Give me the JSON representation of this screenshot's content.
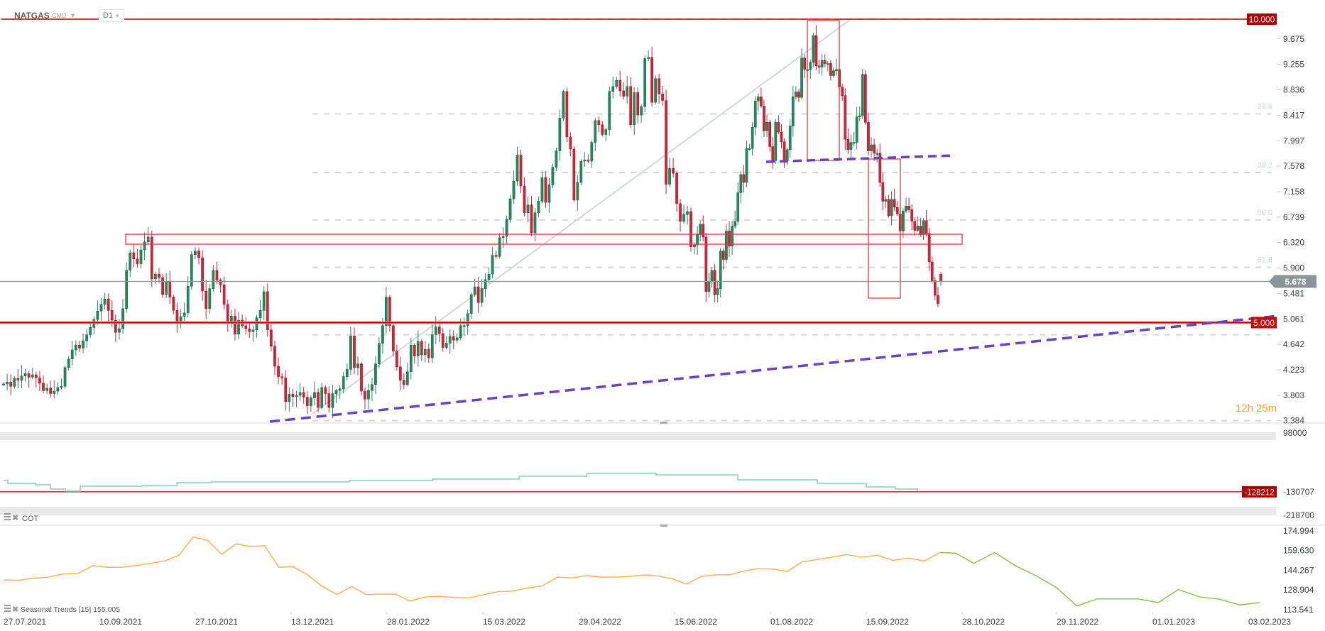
{
  "header": {
    "symbol": "NATGAS",
    "market": "CMD",
    "timeframe": "D1"
  },
  "icons": {
    "dropdown": "caret-down-icon",
    "panel_menu": "list-icon",
    "panel_close": "close-icon"
  },
  "colors": {
    "up": "#1f8b5b",
    "down": "#d91f35",
    "level_line": "#c40000",
    "current_price": "#8a9599",
    "trend": "#6a40c4",
    "fib": "#cfd8dc",
    "cot_line": "#7fd3b0",
    "seasonal_history": "#ffb150",
    "seasonal_projection": "#8bc34a",
    "countdown": "#f7a035"
  },
  "price_axis": {
    "labels": [
      "9.675",
      "9.255",
      "8.836",
      "8.417",
      "7.997",
      "7.578",
      "7.158",
      "6.739",
      "6.320",
      "5.900",
      "5.481",
      "5.061",
      "4.642",
      "4.223",
      "3.803",
      "3.384"
    ]
  },
  "badges": {
    "resistance": "10.000",
    "support": "5.000",
    "current_price": "5.678",
    "cot_level": "-128212"
  },
  "fib": {
    "high": 10.0,
    "low": 3.384,
    "levels": [
      0,
      23.6,
      38.2,
      50.0,
      61.8,
      78.6,
      100
    ],
    "visible_labels": [
      "23.6",
      "38.2",
      "50.0",
      "61.8"
    ]
  },
  "countdown": {
    "hours": "12h",
    "minutes": "25m"
  },
  "cot": {
    "label": "COT",
    "axis_labels": [
      "98000",
      "-130707",
      "-218700"
    ]
  },
  "seasonal": {
    "label": "Seasonal  Trends  [15]  155.005",
    "axis_labels": [
      "174.994",
      "159.630",
      "144.267",
      "128.904",
      "113.541"
    ]
  },
  "date_axis": {
    "labels": [
      "27.07.2021",
      "10.09.2021",
      "27.10.2021",
      "13.12.2021",
      "28.01.2022",
      "15.03.2022",
      "29.04.2022",
      "15.06.2022",
      "01.08.2022",
      "15.09.2022",
      "28.10.2022",
      "29.11.2022",
      "01.01.2023",
      "03.02.2023"
    ]
  },
  "chart_data": [
    {
      "type": "candlestick",
      "title": "NATGAS",
      "interval": "D1",
      "x_range": [
        "27.07.2021",
        "03.02.2023"
      ],
      "ylim": [
        3.384,
        10.0
      ],
      "levels": [
        10.0,
        5.0
      ],
      "last_price": 5.678,
      "closes": [
        3.99,
        4.02,
        3.95,
        4.08,
        4.05,
        4.12,
        4.16,
        4.1,
        4.14,
        4.09,
        4.0,
        3.88,
        3.92,
        3.83,
        3.87,
        3.93,
        3.95,
        4.26,
        4.4,
        4.55,
        4.63,
        4.58,
        4.7,
        4.8,
        4.92,
        5.05,
        5.19,
        5.3,
        5.39,
        5.2,
        5.04,
        4.84,
        4.9,
        5.23,
        5.86,
        6.15,
        6.05,
        5.97,
        6.2,
        6.33,
        6.41,
        5.72,
        5.8,
        5.74,
        5.46,
        5.68,
        5.42,
        5.2,
        4.99,
        5.1,
        5.16,
        5.6,
        6.12,
        6.18,
        6.07,
        5.52,
        5.23,
        5.56,
        5.86,
        5.7,
        5.62,
        5.3,
        4.99,
        5.11,
        4.81,
        5.04,
        4.95,
        4.9,
        4.85,
        4.88,
        5.08,
        5.2,
        5.51,
        4.88,
        4.61,
        4.28,
        4.11,
        4.09,
        3.7,
        3.82,
        3.78,
        3.8,
        3.85,
        3.77,
        3.63,
        3.76,
        3.85,
        3.6,
        3.93,
        3.83,
        3.6,
        3.83,
        3.88,
        3.91,
        4.11,
        4.23,
        4.78,
        4.26,
        4.32,
        3.87,
        3.74,
        3.88,
        3.98,
        4.32,
        4.66,
        4.95,
        5.42,
        4.95,
        4.53,
        4.27,
        4.05,
        3.98,
        4.19,
        4.63,
        4.45,
        4.69,
        4.47,
        4.56,
        4.42,
        4.8,
        4.93,
        4.82,
        4.59,
        4.66,
        4.77,
        4.71,
        4.75,
        4.95,
        4.95,
        5.15,
        5.46,
        5.59,
        5.33,
        5.56,
        5.71,
        5.8,
        6.11,
        6.09,
        6.4,
        6.42,
        6.7,
        7.04,
        7.33,
        7.76,
        7.25,
        6.81,
        6.94,
        6.48,
        6.81,
        7.0,
        7.39,
        6.98,
        7.27,
        7.56,
        7.83,
        8.37,
        8.81,
        8.06,
        7.86,
        7.02,
        7.31,
        7.66,
        7.68,
        7.66,
        7.97,
        8.33,
        8.26,
        8.1,
        8.18,
        8.81,
        8.89,
        8.99,
        8.82,
        8.73,
        8.89,
        8.26,
        8.79,
        8.42,
        8.56,
        9.35,
        9.37,
        8.63,
        9.02,
        8.77,
        8.66,
        7.28,
        7.54,
        7.46,
        6.96,
        6.67,
        6.78,
        6.83,
        6.25,
        6.28,
        6.45,
        6.62,
        6.41,
        5.51,
        5.68,
        5.86,
        5.46,
        5.56,
        6.18,
        6.04,
        6.51,
        6.26,
        6.59,
        6.67,
        7.14,
        7.44,
        7.31,
        7.87,
        7.87,
        8.22,
        8.65,
        8.72,
        8.57,
        8.16,
        8.3,
        7.9,
        7.67,
        8.3,
        8.14,
        7.98,
        7.67,
        7.85,
        8.24,
        8.72,
        8.8,
        8.71,
        9.36,
        9.17,
        9.17,
        9.29,
        9.73,
        9.23,
        9.21,
        9.32,
        9.27,
        9.27,
        9.07,
        9.15,
        9.17,
        8.88,
        8.74,
        8.02,
        7.85,
        7.97,
        7.97,
        8.39,
        8.41,
        9.09,
        8.3,
        7.83,
        7.93,
        7.79,
        7.79,
        7.31,
        7.0,
        7.03,
        6.76,
        7.03,
        6.9,
        6.79,
        6.51,
        6.84,
        6.92,
        6.86,
        6.67,
        6.52,
        6.59,
        6.45,
        6.68,
        6.47,
        6.0,
        5.69,
        5.45,
        5.31,
        5.678
      ]
    },
    {
      "type": "line",
      "title": "COT",
      "ylim": [
        -218700,
        98000
      ],
      "level": -128212,
      "points": [
        [
          "27.07.2021",
          -84910
        ],
        [
          "29.07.2021",
          -95830
        ],
        [
          "11.08.2021",
          -101290
        ],
        [
          "18.08.2021",
          -117670
        ],
        [
          "25.08.2021",
          -125860
        ],
        [
          "01.09.2021",
          -106750
        ],
        [
          "01.10.2021",
          -104020
        ],
        [
          "18.10.2021",
          -93100
        ],
        [
          "04.11.2021",
          -90370
        ],
        [
          "08.12.2021",
          -90370
        ],
        [
          "10.01.2022",
          -84910
        ],
        [
          "19.02.2022",
          -79450
        ],
        [
          "01.04.2022",
          -68530
        ],
        [
          "03.05.2022",
          -57610
        ],
        [
          "06.06.2022",
          -63070
        ],
        [
          "16.07.2022",
          -82180
        ],
        [
          "23.08.2022",
          -95830
        ],
        [
          "15.09.2022",
          -109480
        ],
        [
          "28.09.2022",
          -117670
        ],
        [
          "08.10.2022",
          -125860
        ]
      ]
    },
    {
      "type": "line",
      "title": "Seasonal Trends [15]",
      "ylim": [
        113.541,
        174.994
      ],
      "start": "27.07.2021",
      "step_days": 7,
      "history": [
        136.7,
        136.5,
        138.1,
        138.9,
        141.4,
        141.9,
        147.9,
        146.6,
        146.6,
        147.9,
        149.7,
        151.5,
        156.0,
        170.3,
        167.6,
        156.8,
        164.9,
        162.8,
        163.5,
        146.6,
        147.0,
        140.7,
        131.7,
        125.4,
        131.7,
        125.4,
        125.7,
        125.7,
        120.2,
        123.4,
        124.0,
        123.2,
        122.7,
        125.0,
        127.6,
        128.1,
        130.4,
        132.2,
        138.9,
        138.3,
        140.1,
        138.9,
        138.9,
        139.4,
        140.7,
        139.8,
        137.6,
        133.5,
        139.4,
        140.7,
        140.7,
        143.7,
        145.5,
        145.2,
        143.4,
        150.9,
        152.7,
        154.6,
        156.5,
        154.5,
        156.0,
        152.0,
        153.8,
        151.5,
        158.1
      ],
      "projection": [
        158.1,
        157.7,
        149.7,
        158.1,
        147.9,
        140.1,
        130.8,
        116.5,
        122.0,
        122.0,
        122.0,
        119.1,
        129.3,
        123.6,
        121.8,
        117.3,
        119.1
      ]
    }
  ]
}
